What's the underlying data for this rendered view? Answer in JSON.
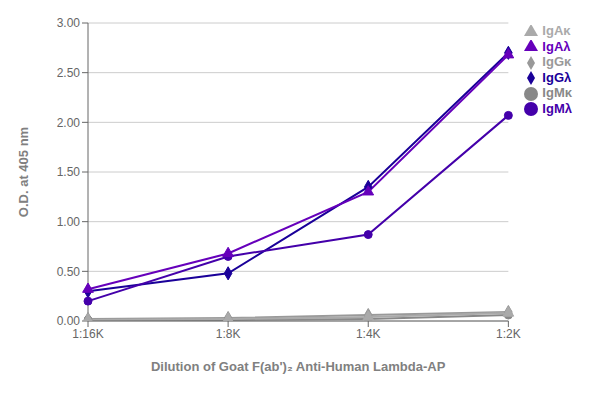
{
  "chart_data": {
    "type": "line",
    "categories": [
      "1:16K",
      "1:8K",
      "1:4K",
      "1:2K"
    ],
    "series": [
      {
        "name": "IgGκ",
        "color": "#999999",
        "marker": "diamond",
        "values": [
          0.02,
          0.03,
          0.06,
          0.09
        ]
      },
      {
        "name": "IgMκ",
        "color": "#888888",
        "marker": "circle",
        "values": [
          0.01,
          0.01,
          0.02,
          0.06
        ]
      },
      {
        "name": "IgAκ",
        "color": "#aaaaaa",
        "marker": "triangle",
        "values": [
          0.01,
          0.02,
          0.04,
          0.08
        ]
      },
      {
        "name": "IgGλ",
        "color": "#1a0099",
        "marker": "diamond",
        "values": [
          0.3,
          0.48,
          1.35,
          2.7
        ]
      },
      {
        "name": "IgMλ",
        "color": "#4400aa",
        "marker": "circle",
        "values": [
          0.2,
          0.65,
          0.87,
          2.07
        ]
      },
      {
        "name": "IgAλ",
        "color": "#6600bb",
        "marker": "triangle",
        "values": [
          0.32,
          0.68,
          1.3,
          2.68
        ]
      }
    ],
    "xlabel": "Dilution of Goat F(ab')₂ Anti-Human Lambda-AP",
    "ylabel": "O.D. at 405 nm",
    "ylim": [
      0.0,
      3.0
    ],
    "yticks": [
      {
        "value": 0.0,
        "label": "0.00"
      },
      {
        "value": 0.5,
        "label": "0.50"
      },
      {
        "value": 1.0,
        "label": "1.00"
      },
      {
        "value": 1.5,
        "label": "1.50"
      },
      {
        "value": 2.0,
        "label": "2.00"
      },
      {
        "value": 2.5,
        "label": "2.50"
      },
      {
        "value": 3.0,
        "label": "3.00"
      }
    ],
    "grid": true,
    "legend": "right"
  }
}
